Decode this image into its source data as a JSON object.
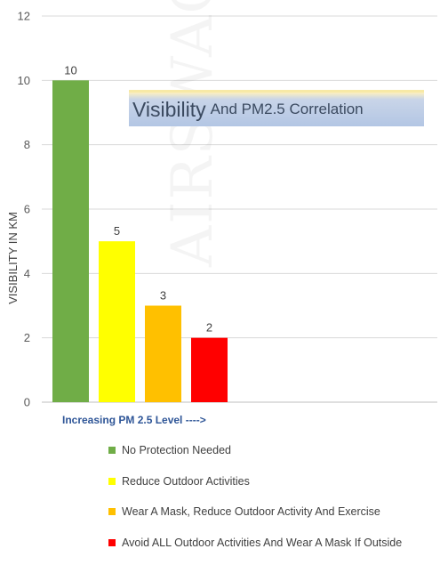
{
  "chart_data": {
    "type": "bar",
    "title": {
      "main": "Visibility",
      "rest": "And PM2.5 Correlation"
    },
    "ylabel": "VISIBILITY IN KM",
    "xlabel": "Increasing PM 2.5 Level ---->",
    "ylim": [
      0,
      12
    ],
    "yticks": [
      "0",
      "2",
      "4",
      "6",
      "8",
      "10",
      "12"
    ],
    "grid": true,
    "legend_position": "bottom",
    "series": [
      {
        "name": "No Protection Needed",
        "value": 10,
        "label": "10",
        "color": "#70ad47"
      },
      {
        "name": "Reduce Outdoor Activities",
        "value": 5,
        "label": "5",
        "color": "#ffff00"
      },
      {
        "name": "Wear A Mask, Reduce Outdoor Activity And Exercise",
        "value": 3,
        "label": "3",
        "color": "#ffc000"
      },
      {
        "name": "Avoid ALL Outdoor Activities And Wear A Mask If Outside",
        "value": 2,
        "label": "2",
        "color": "#ff0000"
      }
    ]
  },
  "watermark": "AIRSWACOM"
}
